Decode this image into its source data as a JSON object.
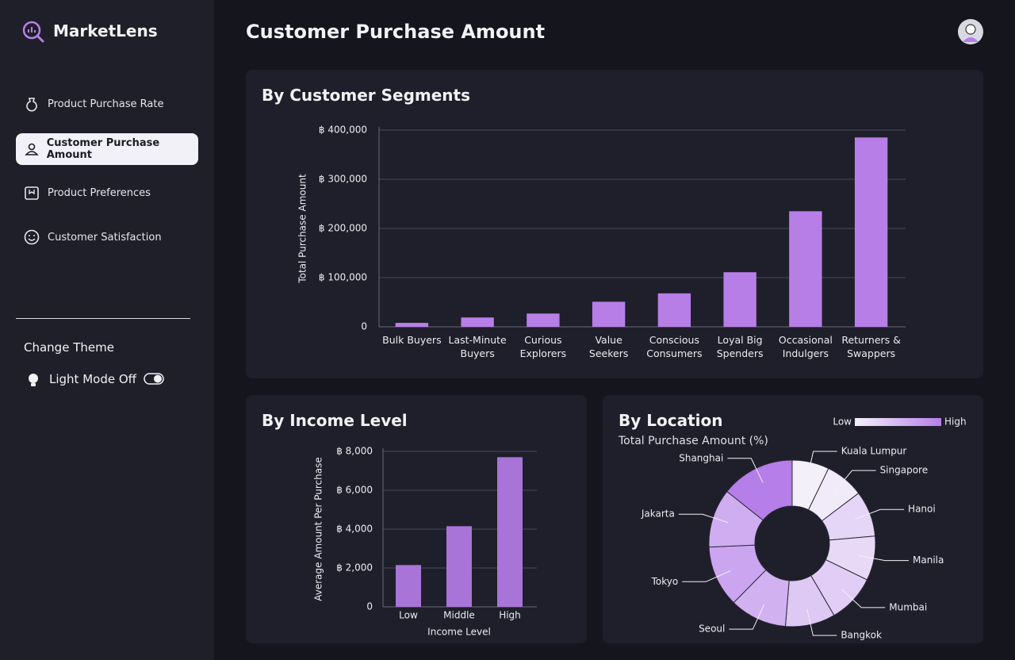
{
  "sidebar": {
    "brand": "MarketLens",
    "nav": [
      "Product Purchase Rate",
      "Customer Purchase Amount",
      "Product Preferences",
      "Customer Satisfaction"
    ],
    "theme_heading": "Change Theme",
    "theme_toggle": "Light Mode Off"
  },
  "header": {
    "title": "Customer Purchase Amount"
  },
  "chart_data": [
    {
      "type": "bar",
      "title": "By Customer Segments",
      "y_label": "Total Purchase Amount",
      "categories": [
        "Bulk Buyers",
        "Last-Minute Buyers",
        "Curious Explorers",
        "Value Seekers",
        "Conscious Consumers",
        "Loyal Big Spenders",
        "Occasional Indulgers",
        "Returners & Swappers"
      ],
      "values": [
        8000,
        19000,
        27000,
        51000,
        68000,
        111000,
        235000,
        385000
      ],
      "color": "#b87ee8",
      "ylim": [
        0,
        400000
      ],
      "yticks": [
        0,
        {
          "value": 100000,
          "label": "฿ 100,000"
        },
        {
          "value": 200000,
          "label": "฿ 200,000"
        },
        {
          "value": 300000,
          "label": "฿ 300,000"
        },
        {
          "value": 400000,
          "label": "฿ 400,000"
        }
      ],
      "grid": true
    },
    {
      "type": "bar",
      "title": "By Income Level",
      "y_label": "Average Amount Per Purchase",
      "x_label": "Income Level",
      "categories": [
        "Low",
        "Middle",
        "High"
      ],
      "values": [
        2150,
        4150,
        7700
      ],
      "color": "#a874d8",
      "ylim": [
        0,
        8000
      ],
      "yticks": [
        0,
        {
          "value": 2000,
          "label": "฿ 2,000"
        },
        {
          "value": 4000,
          "label": "฿ 4,000"
        },
        {
          "value": 6000,
          "label": "฿ 6,000"
        },
        {
          "value": 8000,
          "label": "฿ 8,000"
        }
      ],
      "grid": true
    },
    {
      "type": "donut",
      "title": "By Location",
      "subtitle": "Total Purchase Amount (%)",
      "legend_low": "Low",
      "legend_high": "High",
      "colorscale": [
        "#f4f0fa",
        "#b67ee9"
      ],
      "categories": [
        "Kuala Lumpur",
        "Singapore",
        "Hanoi",
        "Manila",
        "Mumbai",
        "Bangkok",
        "Seoul",
        "Tokyo",
        "Jakarta",
        "Shanghai"
      ],
      "values": [
        7.2,
        7.5,
        8.9,
        8.6,
        9.4,
        9.7,
        11.1,
        11.9,
        11.4,
        14.3
      ]
    }
  ]
}
